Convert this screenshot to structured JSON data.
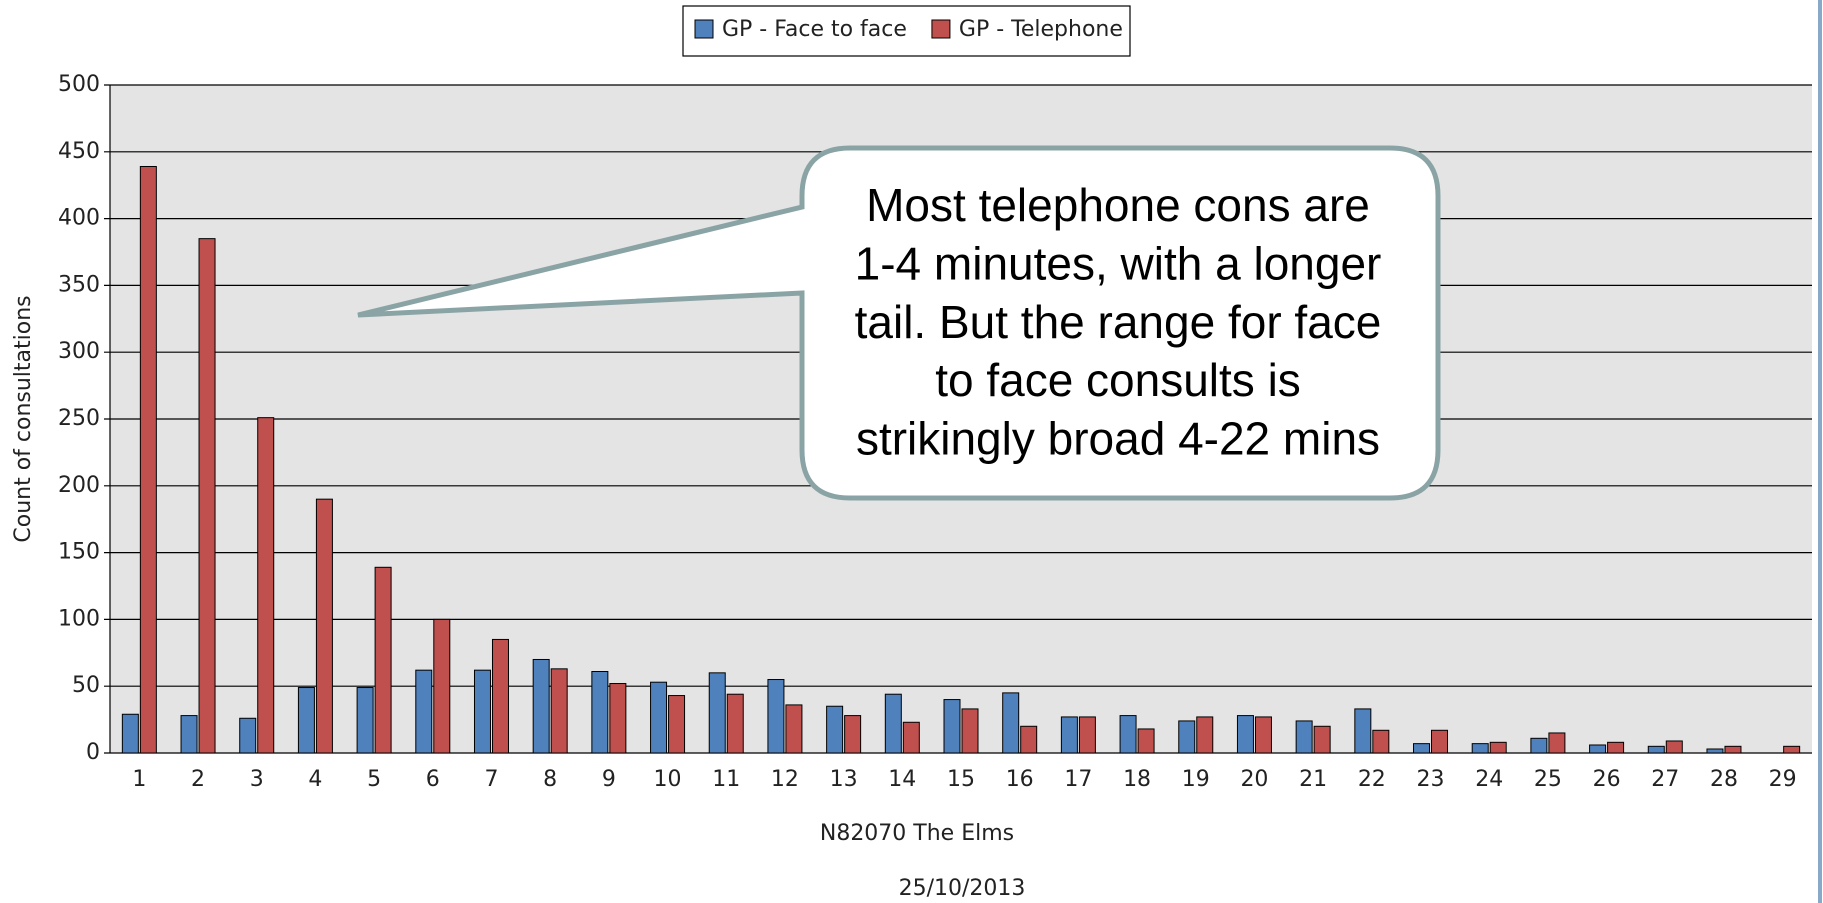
{
  "chart_data": {
    "type": "bar",
    "categories": [
      1,
      2,
      3,
      4,
      5,
      6,
      7,
      8,
      9,
      10,
      11,
      12,
      13,
      14,
      15,
      16,
      17,
      18,
      19,
      20,
      21,
      22,
      23,
      24,
      25,
      26,
      27,
      28,
      29
    ],
    "series": [
      {
        "name": "GP - Face to face",
        "color": "#4f81bd",
        "values": [
          29,
          28,
          26,
          49,
          49,
          62,
          62,
          70,
          61,
          53,
          60,
          55,
          35,
          44,
          40,
          45,
          27,
          28,
          24,
          28,
          24,
          33,
          7,
          7,
          11,
          6,
          5,
          3,
          0
        ]
      },
      {
        "name": "GP - Telephone",
        "color": "#c0504d",
        "values": [
          439,
          385,
          251,
          190,
          139,
          100,
          85,
          63,
          52,
          43,
          44,
          36,
          28,
          23,
          33,
          20,
          27,
          18,
          27,
          27,
          20,
          17,
          17,
          8,
          15,
          8,
          9,
          5,
          5
        ]
      }
    ],
    "ylim": [
      0,
      500
    ],
    "yticks": [
      0,
      50,
      100,
      150,
      200,
      250,
      300,
      350,
      400,
      450,
      500
    ],
    "grid": true,
    "y_label": "Count of consultations",
    "x_label": "N82070 The Elms",
    "subtitle": "25/10/2013",
    "annotation": [
      "Most telephone cons are",
      "1-4 minutes, with a longer",
      "tail.  But the range for face",
      "to face consults is",
      "strikingly broad 4-22 mins"
    ]
  }
}
